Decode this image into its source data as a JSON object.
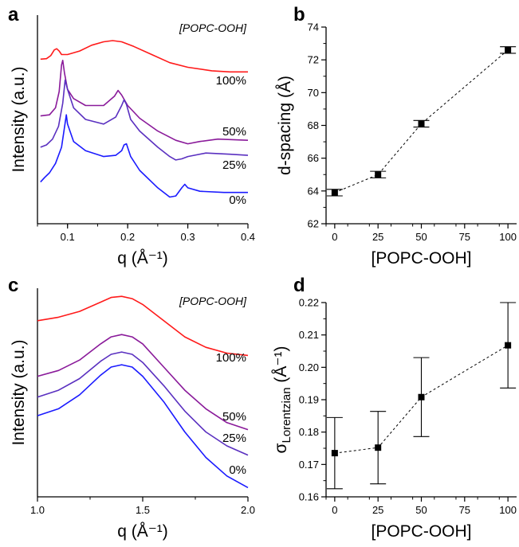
{
  "chart_data": [
    {
      "panel": "a",
      "type": "line",
      "xlabel": "q (Å⁻¹)",
      "ylabel": "Intensity (a.u.)",
      "xlim": [
        0.05,
        0.4
      ],
      "xticks": [
        "0.1",
        "0.2",
        "0.3",
        "0.4"
      ],
      "xtick_values": [
        0.1,
        0.2,
        0.3,
        0.4
      ],
      "legend_title": "[POPC-OOH]",
      "grid": false,
      "series": [
        {
          "name": "100%",
          "color": "#ff1a1a",
          "x": [
            0.055,
            0.065,
            0.072,
            0.078,
            0.082,
            0.086,
            0.09,
            0.1,
            0.12,
            0.14,
            0.16,
            0.175,
            0.19,
            0.21,
            0.24,
            0.27,
            0.3,
            0.34,
            0.37,
            0.4
          ],
          "y": [
            0.81,
            0.812,
            0.825,
            0.85,
            0.855,
            0.845,
            0.83,
            0.83,
            0.845,
            0.87,
            0.885,
            0.89,
            0.885,
            0.865,
            0.83,
            0.795,
            0.775,
            0.76,
            0.755,
            0.755
          ]
        },
        {
          "name": "50%",
          "color": "#8a1a9a",
          "x": [
            0.055,
            0.07,
            0.08,
            0.086,
            0.09,
            0.092,
            0.095,
            0.1,
            0.11,
            0.13,
            0.16,
            0.178,
            0.184,
            0.19,
            0.2,
            0.22,
            0.25,
            0.28,
            0.3,
            0.32,
            0.35,
            0.4
          ],
          "y": [
            0.565,
            0.57,
            0.6,
            0.67,
            0.785,
            0.805,
            0.75,
            0.68,
            0.64,
            0.61,
            0.61,
            0.65,
            0.675,
            0.655,
            0.61,
            0.555,
            0.5,
            0.46,
            0.445,
            0.455,
            0.465,
            0.46
          ]
        },
        {
          "name": "25%",
          "color": "#5a30c0",
          "x": [
            0.055,
            0.065,
            0.075,
            0.085,
            0.092,
            0.096,
            0.1,
            0.11,
            0.13,
            0.16,
            0.18,
            0.19,
            0.194,
            0.198,
            0.205,
            0.22,
            0.25,
            0.27,
            0.28,
            0.29,
            0.3,
            0.33,
            0.37,
            0.4
          ],
          "y": [
            0.43,
            0.44,
            0.465,
            0.52,
            0.62,
            0.72,
            0.68,
            0.6,
            0.55,
            0.53,
            0.56,
            0.61,
            0.635,
            0.615,
            0.55,
            0.5,
            0.43,
            0.39,
            0.375,
            0.38,
            0.39,
            0.405,
            0.4,
            0.395
          ]
        },
        {
          "name": "0%",
          "color": "#1a1aff",
          "x": [
            0.055,
            0.062,
            0.07,
            0.08,
            0.09,
            0.094,
            0.098,
            0.1,
            0.11,
            0.13,
            0.16,
            0.18,
            0.19,
            0.194,
            0.198,
            0.205,
            0.22,
            0.25,
            0.27,
            0.28,
            0.29,
            0.295,
            0.3,
            0.32,
            0.36,
            0.4
          ],
          "y": [
            0.28,
            0.3,
            0.32,
            0.36,
            0.43,
            0.5,
            0.57,
            0.53,
            0.455,
            0.415,
            0.39,
            0.395,
            0.415,
            0.44,
            0.445,
            0.39,
            0.33,
            0.255,
            0.215,
            0.22,
            0.255,
            0.27,
            0.255,
            0.24,
            0.235,
            0.235
          ]
        }
      ]
    },
    {
      "panel": "b",
      "type": "scatter",
      "xlabel": "[POPC-OOH]",
      "ylabel": "d-spacing (Å)",
      "xlim": [
        -5,
        105
      ],
      "ylim": [
        62,
        74
      ],
      "xticks": [
        "0",
        "25",
        "50",
        "75",
        "100"
      ],
      "xtick_values": [
        0,
        25,
        50,
        75,
        100
      ],
      "yticks": [
        "62",
        "64",
        "66",
        "68",
        "70",
        "72",
        "74"
      ],
      "ytick_values": [
        62,
        64,
        66,
        68,
        70,
        72,
        74
      ],
      "grid": false,
      "x": [
        0,
        25,
        50,
        100
      ],
      "y": [
        63.9,
        65.0,
        68.1,
        72.6
      ],
      "yerr": [
        0.2,
        0.2,
        0.2,
        0.2
      ],
      "connector": "dashed"
    },
    {
      "panel": "c",
      "type": "line",
      "xlabel": "q (Å⁻¹)",
      "ylabel": "Intensity (a.u.)",
      "xlim": [
        1.0,
        2.0
      ],
      "xticks": [
        "1.0",
        "1.5",
        "2.0"
      ],
      "xtick_values": [
        1.0,
        1.5,
        2.0
      ],
      "legend_title": "[POPC-OOH]",
      "grid": false,
      "series": [
        {
          "name": "100%",
          "color": "#ff1a1a",
          "x": [
            1.0,
            1.1,
            1.2,
            1.3,
            1.35,
            1.4,
            1.45,
            1.5,
            1.6,
            1.7,
            1.8,
            1.9,
            2.0
          ],
          "y": [
            0.86,
            0.875,
            0.9,
            0.94,
            0.96,
            0.965,
            0.955,
            0.93,
            0.86,
            0.79,
            0.745,
            0.72,
            0.71
          ]
        },
        {
          "name": "50%",
          "color": "#8a1a9a",
          "x": [
            1.0,
            1.1,
            1.2,
            1.3,
            1.35,
            1.4,
            1.45,
            1.5,
            1.6,
            1.7,
            1.8,
            1.9,
            2.0
          ],
          "y": [
            0.62,
            0.645,
            0.69,
            0.76,
            0.79,
            0.8,
            0.79,
            0.76,
            0.66,
            0.56,
            0.48,
            0.42,
            0.39
          ]
        },
        {
          "name": "25%",
          "color": "#5a30c0",
          "x": [
            1.0,
            1.1,
            1.2,
            1.3,
            1.35,
            1.4,
            1.45,
            1.5,
            1.6,
            1.7,
            1.8,
            1.9,
            2.0
          ],
          "y": [
            0.53,
            0.56,
            0.61,
            0.685,
            0.715,
            0.725,
            0.715,
            0.68,
            0.58,
            0.47,
            0.38,
            0.32,
            0.28
          ]
        },
        {
          "name": "0%",
          "color": "#1a1aff",
          "x": [
            1.0,
            1.1,
            1.2,
            1.3,
            1.35,
            1.4,
            1.45,
            1.5,
            1.6,
            1.7,
            1.8,
            1.9,
            2.0
          ],
          "y": [
            0.45,
            0.48,
            0.54,
            0.625,
            0.66,
            0.67,
            0.66,
            0.62,
            0.51,
            0.38,
            0.27,
            0.19,
            0.14
          ]
        }
      ]
    },
    {
      "panel": "d",
      "type": "scatter",
      "xlabel": "[POPC-OOH]",
      "ylabel_main": "σ",
      "ylabel_sub": "Lorentzian",
      "ylabel_unit": " (Å⁻¹)",
      "xlim": [
        -5,
        105
      ],
      "ylim": [
        0.16,
        0.22
      ],
      "xticks": [
        "0",
        "25",
        "50",
        "75",
        "100"
      ],
      "xtick_values": [
        0,
        25,
        50,
        75,
        100
      ],
      "yticks": [
        "0.16",
        "0.17",
        "0.18",
        "0.19",
        "0.20",
        "0.21",
        "0.22"
      ],
      "ytick_values": [
        0.16,
        0.17,
        0.18,
        0.19,
        0.2,
        0.21,
        0.22
      ],
      "grid": false,
      "x": [
        0,
        25,
        50,
        100
      ],
      "y": [
        0.1735,
        0.1752,
        0.1908,
        0.2068
      ],
      "yerr": [
        0.011,
        0.0112,
        0.0122,
        0.0132
      ],
      "connector": "dashed"
    }
  ],
  "panel_letters": [
    "a",
    "b",
    "c",
    "d"
  ]
}
